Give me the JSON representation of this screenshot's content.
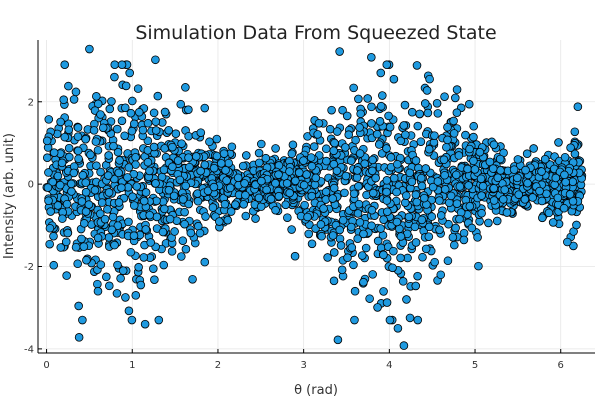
{
  "chart_data": {
    "type": "scatter",
    "title": "Simulation Data From Squeezed State",
    "xlabel": "θ (rad)",
    "ylabel": "Intensity (arb. unit)",
    "xlim": [
      -0.1,
      6.4
    ],
    "ylim": [
      -4.1,
      3.5
    ],
    "xticks": [
      0,
      1,
      2,
      3,
      4,
      5,
      6
    ],
    "yticks": [
      -4,
      -2,
      0,
      2
    ],
    "grid": true,
    "legend": "none",
    "marker_color": "#1f9ae0",
    "marker_edge": "#000000",
    "envelope": "noise amplitude oscillates with period π; broad (σ≈1.25) near θ≈0.9 and θ≈4.0, narrow (σ≈0.3) near θ≈2.5 and θ≈5.5",
    "x_range": [
      0,
      6.25
    ],
    "n_points": 2200,
    "points": [
      [
        0.5,
        3.28
      ],
      [
        1.27,
        3.02
      ],
      [
        3.42,
        3.22
      ],
      [
        3.79,
        3.08
      ],
      [
        3.97,
        2.9
      ],
      [
        4.47,
        2.55
      ],
      [
        0.97,
        2.7
      ],
      [
        0.38,
        -3.72
      ],
      [
        1.15,
        -3.4
      ],
      [
        3.4,
        -3.78
      ],
      [
        4.1,
        -3.5
      ],
      [
        4.17,
        -3.92
      ],
      [
        0.92,
        -2.75
      ],
      [
        4.2,
        -2.8
      ],
      [
        3.77,
        -2.78
      ],
      [
        0.2,
        2.05
      ],
      [
        6.2,
        1.88
      ],
      [
        1.62,
        2.35
      ],
      [
        1.8,
        1.25
      ],
      [
        2.9,
        -1.75
      ],
      [
        3.9,
        2.7
      ],
      [
        4.6,
        -2.2
      ],
      [
        0.6,
        -2.6
      ],
      [
        1.1,
        -2.45
      ],
      [
        3.6,
        -2.6
      ]
    ]
  }
}
